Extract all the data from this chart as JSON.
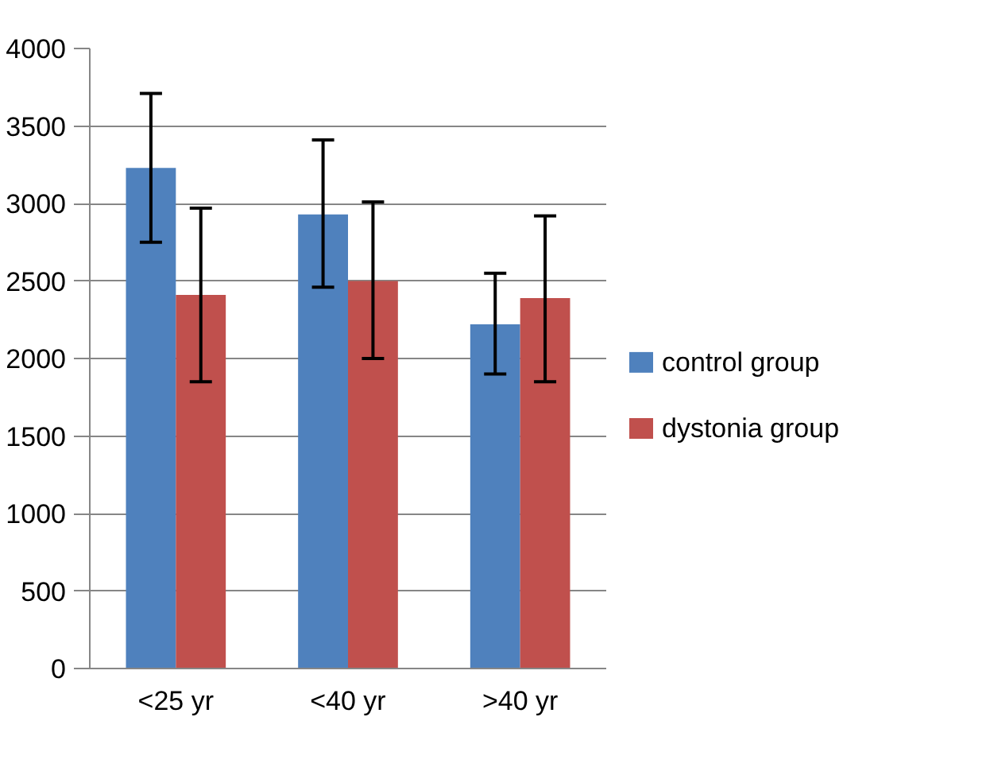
{
  "chart_data": {
    "type": "bar",
    "categories": [
      "<25 yr",
      "<40 yr",
      ">40 yr"
    ],
    "series": [
      {
        "name": "control group",
        "color": "#4f81bd",
        "values": [
          3230,
          2930,
          2220
        ],
        "errors": [
          [
            2750,
            3710
          ],
          [
            2460,
            3410
          ],
          [
            1900,
            2550
          ]
        ]
      },
      {
        "name": "dystonia group",
        "color": "#c0504d",
        "values": [
          2410,
          2500,
          2390
        ],
        "errors": [
          [
            1850,
            2970
          ],
          [
            2000,
            3010
          ],
          [
            1850,
            2920
          ]
        ]
      }
    ],
    "ylim": [
      0,
      4000
    ],
    "yticks": [
      0,
      500,
      1000,
      1500,
      2000,
      2500,
      3000,
      3500,
      4000
    ],
    "grid": "y",
    "legend": "right"
  }
}
